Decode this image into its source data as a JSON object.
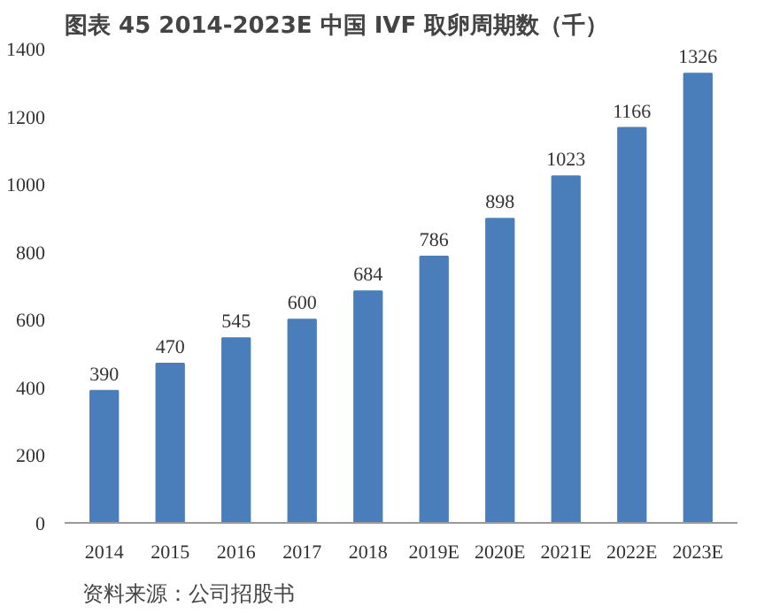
{
  "chart_data": {
    "type": "bar",
    "title": "图表 45 2014-2023E 中国 IVF 取卵周期数（千）",
    "categories": [
      "2014",
      "2015",
      "2016",
      "2017",
      "2018",
      "2019E",
      "2020E",
      "2021E",
      "2022E",
      "2023E"
    ],
    "values": [
      390,
      470,
      545,
      600,
      684,
      786,
      898,
      1023,
      1166,
      1326
    ],
    "color": "#4a7ebb",
    "ylim": [
      0,
      1400
    ],
    "yticks": [
      0,
      200,
      400,
      600,
      800,
      1000,
      1200,
      1400
    ],
    "grid": false,
    "data_labels": true,
    "annotations": [
      "资料来源：公司招股书"
    ]
  }
}
